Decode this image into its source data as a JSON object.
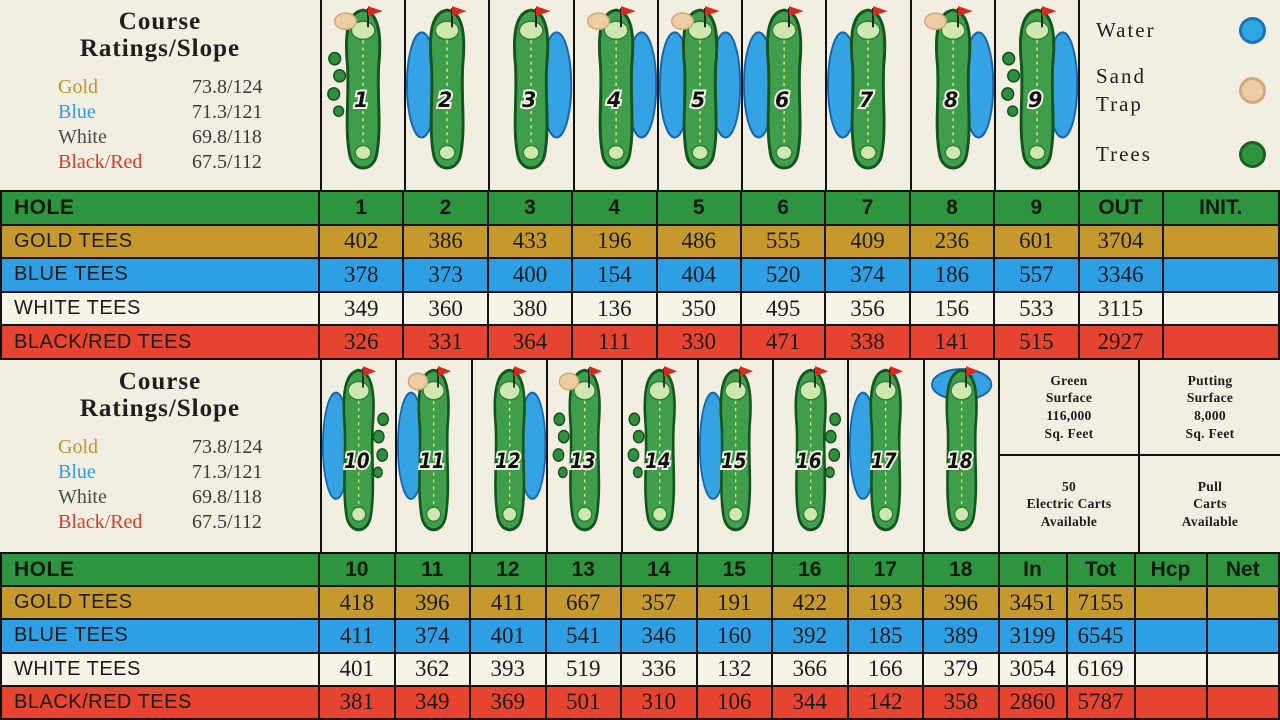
{
  "ratings": {
    "title": "Course\nRatings/Slope",
    "rows": [
      {
        "tee": "Gold",
        "value": "73.8/124"
      },
      {
        "tee": "Blue",
        "value": "71.3/121"
      },
      {
        "tee": "White",
        "value": "69.8/118"
      },
      {
        "tee": "Black/Red",
        "value": "67.5/112"
      }
    ]
  },
  "legend": {
    "water": "Water",
    "sand": "Sand\nTrap",
    "trees": "Trees"
  },
  "info": {
    "green_surface": "Green\nSurface\n116,000\nSq. Feet",
    "putting_surface": "Putting\nSurface\n8,000\nSq. Feet",
    "electric_carts": "50\nElectric Carts\nAvailable",
    "pull_carts": "Pull\nCarts\nAvailable"
  },
  "front": {
    "header": [
      "HOLE",
      "1",
      "2",
      "3",
      "4",
      "5",
      "6",
      "7",
      "8",
      "9",
      "OUT",
      "INIT."
    ],
    "rows": [
      {
        "label": "GOLD TEES",
        "values": [
          "402",
          "386",
          "433",
          "196",
          "486",
          "555",
          "409",
          "236",
          "601",
          "3704",
          ""
        ]
      },
      {
        "label": "BLUE TEES",
        "values": [
          "378",
          "373",
          "400",
          "154",
          "404",
          "520",
          "374",
          "186",
          "557",
          "3346",
          ""
        ]
      },
      {
        "label": "WHITE TEES",
        "values": [
          "349",
          "360",
          "380",
          "136",
          "350",
          "495",
          "356",
          "156",
          "533",
          "3115",
          ""
        ]
      },
      {
        "label": "BLACK/RED TEES",
        "values": [
          "326",
          "331",
          "364",
          "111",
          "330",
          "471",
          "338",
          "141",
          "515",
          "2927",
          ""
        ]
      }
    ]
  },
  "back": {
    "header": [
      "HOLE",
      "10",
      "11",
      "12",
      "13",
      "14",
      "15",
      "16",
      "17",
      "18",
      "In",
      "Tot",
      "Hcp",
      "Net"
    ],
    "rows": [
      {
        "label": "GOLD TEES",
        "values": [
          "418",
          "396",
          "411",
          "667",
          "357",
          "191",
          "422",
          "193",
          "396",
          "3451",
          "7155",
          "",
          ""
        ]
      },
      {
        "label": "BLUE TEES",
        "values": [
          "411",
          "374",
          "401",
          "541",
          "346",
          "160",
          "392",
          "185",
          "389",
          "3199",
          "6545",
          "",
          ""
        ]
      },
      {
        "label": "WHITE TEES",
        "values": [
          "401",
          "362",
          "393",
          "519",
          "336",
          "132",
          "366",
          "166",
          "379",
          "3054",
          "6169",
          "",
          ""
        ]
      },
      {
        "label": "BLACK/RED TEES",
        "values": [
          "381",
          "349",
          "369",
          "501",
          "310",
          "106",
          "344",
          "142",
          "358",
          "2860",
          "5787",
          "",
          ""
        ]
      }
    ]
  },
  "holes_front": [
    {
      "number": "1",
      "water": "none",
      "sand": true,
      "trees": "left"
    },
    {
      "number": "2",
      "water": "left",
      "sand": false,
      "trees": "none"
    },
    {
      "number": "3",
      "water": "right",
      "sand": false,
      "trees": "none"
    },
    {
      "number": "4",
      "water": "right",
      "sand": true,
      "trees": "none"
    },
    {
      "number": "5",
      "water": "both",
      "sand": true,
      "trees": "none"
    },
    {
      "number": "6",
      "water": "left",
      "sand": false,
      "trees": "none"
    },
    {
      "number": "7",
      "water": "left",
      "sand": false,
      "trees": "none"
    },
    {
      "number": "8",
      "water": "right",
      "sand": true,
      "trees": "none"
    },
    {
      "number": "9",
      "water": "right",
      "sand": false,
      "trees": "left"
    }
  ],
  "holes_back": [
    {
      "number": "10",
      "water": "left",
      "sand": false,
      "trees": "right"
    },
    {
      "number": "11",
      "water": "left",
      "sand": true,
      "trees": "none"
    },
    {
      "number": "12",
      "water": "right",
      "sand": false,
      "trees": "none"
    },
    {
      "number": "13",
      "water": "none",
      "sand": true,
      "trees": "left"
    },
    {
      "number": "14",
      "water": "none",
      "sand": false,
      "trees": "left"
    },
    {
      "number": "15",
      "water": "left",
      "sand": false,
      "trees": "none"
    },
    {
      "number": "16",
      "water": "none",
      "sand": false,
      "trees": "right"
    },
    {
      "number": "17",
      "water": "left",
      "sand": false,
      "trees": "none"
    },
    {
      "number": "18",
      "water": "top",
      "sand": false,
      "trees": "none"
    }
  ],
  "colors": {
    "hole_row_green": "#2e9440",
    "gold_tees": "#c5992e",
    "blue_tees": "#2e9fe4",
    "white_tees": "#f6f3e7",
    "black_red_tees": "#e64430",
    "water": "#2fa7e6",
    "sand": "#eecda6",
    "trees": "#2f9440"
  }
}
